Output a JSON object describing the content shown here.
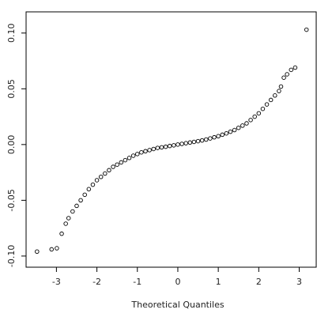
{
  "chart_data": {
    "type": "scatter",
    "xlabel": "Theoretical Quantiles",
    "xlim": [
      -3.75,
      3.42
    ],
    "ylim": [
      -0.11,
      0.119
    ],
    "xticks": [
      -3,
      -2,
      -1,
      0,
      1,
      2,
      3
    ],
    "yticks": [
      {
        "value": -0.1,
        "label": "-0.10"
      },
      -0.05,
      {
        "value": 0,
        "label": "0.00"
      },
      0.05,
      {
        "value": 0.1,
        "label": "0.10"
      }
    ],
    "color": "#000000",
    "x": [
      -3.48,
      -3.12,
      -2.99,
      -2.87,
      -2.77,
      -2.7,
      -2.6,
      -2.5,
      -2.4,
      -2.3,
      -2.2,
      -2.1,
      -2.0,
      -1.9,
      -1.8,
      -1.7,
      -1.6,
      -1.5,
      -1.4,
      -1.3,
      -1.2,
      -1.1,
      -1.0,
      -0.9,
      -0.8,
      -0.7,
      -0.6,
      -0.5,
      -0.4,
      -0.3,
      -0.2,
      -0.1,
      0,
      0.1,
      0.2,
      0.3,
      0.4,
      0.5,
      0.6,
      0.7,
      0.8,
      0.9,
      1.0,
      1.1,
      1.2,
      1.3,
      1.4,
      1.5,
      1.6,
      1.7,
      1.8,
      1.9,
      2.0,
      2.1,
      2.2,
      2.3,
      2.4,
      2.5,
      2.55,
      2.62,
      2.7,
      2.8,
      2.9,
      3.18
    ],
    "values": [
      -0.096,
      -0.094,
      -0.093,
      -0.08,
      -0.071,
      -0.066,
      -0.06,
      -0.055,
      -0.05,
      -0.045,
      -0.04,
      -0.036,
      -0.032,
      -0.029,
      -0.026,
      -0.023,
      -0.02,
      -0.018,
      -0.016,
      -0.014,
      -0.012,
      -0.01,
      -0.0085,
      -0.007,
      -0.006,
      -0.005,
      -0.004,
      -0.003,
      -0.0025,
      -0.002,
      -0.0013,
      -0.0007,
      0,
      0.0006,
      0.0012,
      0.0018,
      0.0024,
      0.003,
      0.0037,
      0.0045,
      0.0055,
      0.0065,
      0.0075,
      0.0088,
      0.01,
      0.0115,
      0.013,
      0.015,
      0.017,
      0.019,
      0.022,
      0.025,
      0.028,
      0.032,
      0.036,
      0.04,
      0.044,
      0.048,
      0.052,
      0.06,
      0.063,
      0.067,
      0.069,
      0.103
    ]
  }
}
